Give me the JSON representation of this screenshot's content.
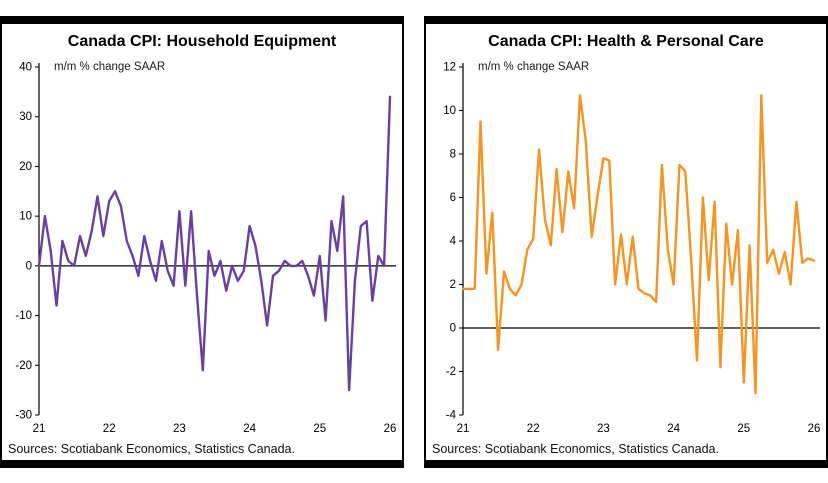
{
  "chart_data": [
    {
      "type": "line",
      "title": "Canada CPI: Household Equipment",
      "unit_label": "m/m % change SAAR",
      "source_note": "Sources: Scotiabank Economics, Statistics Canada.",
      "line_color": "#6a3fa5",
      "x_frequency": "monthly",
      "x_tick_labels": [
        "21",
        "22",
        "23",
        "24",
        "25",
        "26"
      ],
      "ylim": [
        -30,
        40
      ],
      "yticks": [
        40,
        30,
        20,
        10,
        0,
        -10,
        -20,
        -30
      ],
      "grid": "off",
      "legend": "none",
      "values": [
        0,
        10,
        3,
        -8,
        5,
        1,
        0,
        6,
        2,
        7,
        14,
        6,
        13,
        15,
        12,
        5,
        2,
        -2,
        6,
        1,
        -3,
        5,
        -1,
        -4,
        11,
        -4,
        11,
        -6,
        -21,
        3,
        -2,
        1,
        -5,
        0,
        -3,
        -1,
        8,
        4,
        -3,
        -12,
        -2,
        -1,
        1,
        0,
        0,
        1,
        -2,
        -6,
        2,
        -11,
        9,
        3,
        14,
        -25,
        -3,
        8,
        9,
        -7,
        2,
        0,
        34
      ]
    },
    {
      "type": "line",
      "title": "Canada CPI: Health & Personal Care",
      "unit_label": "m/m % change SAAR",
      "source_note": "Sources: Scotiabank Economics, Statistics Canada.",
      "line_color": "#f8941d",
      "x_frequency": "monthly",
      "x_tick_labels": [
        "21",
        "22",
        "23",
        "24",
        "25",
        "26"
      ],
      "ylim": [
        -4,
        12
      ],
      "yticks": [
        12,
        10,
        8,
        6,
        4,
        2,
        0,
        -2,
        -4
      ],
      "grid": "off",
      "legend": "none",
      "values": [
        1.8,
        1.8,
        1.8,
        9.5,
        2.5,
        5.3,
        -1.0,
        2.6,
        1.8,
        1.5,
        2.0,
        3.6,
        4.1,
        8.2,
        5.0,
        3.8,
        7.3,
        4.4,
        7.2,
        5.5,
        10.7,
        8.6,
        4.2,
        6.1,
        7.8,
        7.7,
        2.0,
        4.3,
        2.0,
        4.2,
        1.8,
        1.6,
        1.5,
        1.2,
        7.5,
        3.6,
        2.0,
        7.5,
        7.2,
        3.2,
        -1.5,
        6.0,
        2.2,
        5.8,
        -1.8,
        4.8,
        2.0,
        4.5,
        -2.5,
        3.8,
        -3.0,
        10.7,
        3.0,
        3.6,
        2.5,
        3.5,
        2.0,
        5.8,
        3.0,
        3.2,
        3.1
      ]
    }
  ]
}
